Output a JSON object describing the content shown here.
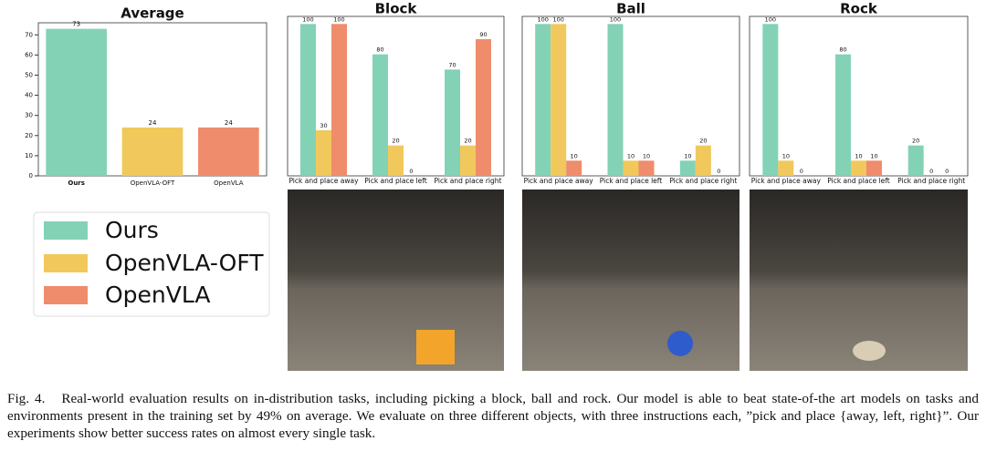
{
  "chart_data": [
    {
      "type": "bar",
      "title": "Average",
      "categories": [
        "Ours",
        "OpenVLA-OFT",
        "OpenVLA"
      ],
      "values": [
        73,
        24,
        24
      ],
      "colors": [
        "#83d2b6",
        "#f1c85c",
        "#ef8c6c"
      ],
      "ylim": [
        0,
        76
      ],
      "yticks": [
        0,
        10,
        20,
        30,
        40,
        50,
        60,
        70
      ]
    },
    {
      "type": "grouped_bar",
      "title": "Block",
      "categories": [
        "Pick and place away",
        "Pick and place left",
        "Pick and place right"
      ],
      "series": [
        {
          "name": "Ours",
          "color": "#83d2b6",
          "values": [
            100,
            80,
            70
          ]
        },
        {
          "name": "OpenVLA-OFT",
          "color": "#f1c85c",
          "values": [
            30,
            20,
            20
          ]
        },
        {
          "name": "OpenVLA",
          "color": "#ef8c6c",
          "values": [
            100,
            0,
            90
          ]
        }
      ],
      "ylim": [
        0,
        105
      ]
    },
    {
      "type": "grouped_bar",
      "title": "Ball",
      "categories": [
        "Pick and place away",
        "Pick and place left",
        "Pick and place right"
      ],
      "series": [
        {
          "name": "Ours",
          "color": "#83d2b6",
          "values": [
            100,
            100,
            10
          ]
        },
        {
          "name": "OpenVLA-OFT",
          "color": "#f1c85c",
          "values": [
            100,
            10,
            20
          ]
        },
        {
          "name": "OpenVLA",
          "color": "#ef8c6c",
          "values": [
            10,
            10,
            0
          ]
        }
      ],
      "ylim": [
        0,
        105
      ]
    },
    {
      "type": "grouped_bar",
      "title": "Rock",
      "categories": [
        "Pick and place away",
        "Pick and place left",
        "Pick and place right"
      ],
      "series": [
        {
          "name": "Ours",
          "color": "#83d2b6",
          "values": [
            100,
            80,
            20
          ]
        },
        {
          "name": "OpenVLA-OFT",
          "color": "#f1c85c",
          "values": [
            10,
            10,
            0
          ]
        },
        {
          "name": "OpenVLA",
          "color": "#ef8c6c",
          "values": [
            0,
            10,
            0
          ]
        }
      ],
      "ylim": [
        0,
        105
      ]
    }
  ],
  "caption": {
    "label": "Fig. 4.",
    "text": "Real-world evaluation results on in-distribution tasks, including picking a block, ball and rock. Our model is able to beat state-of-the art models on tasks and environments present in the training set by 49% on average. We evaluate on three different objects, with three instructions each, ”pick and place {away, left, right}”. Our experiments show better success rates on almost every single task."
  }
}
